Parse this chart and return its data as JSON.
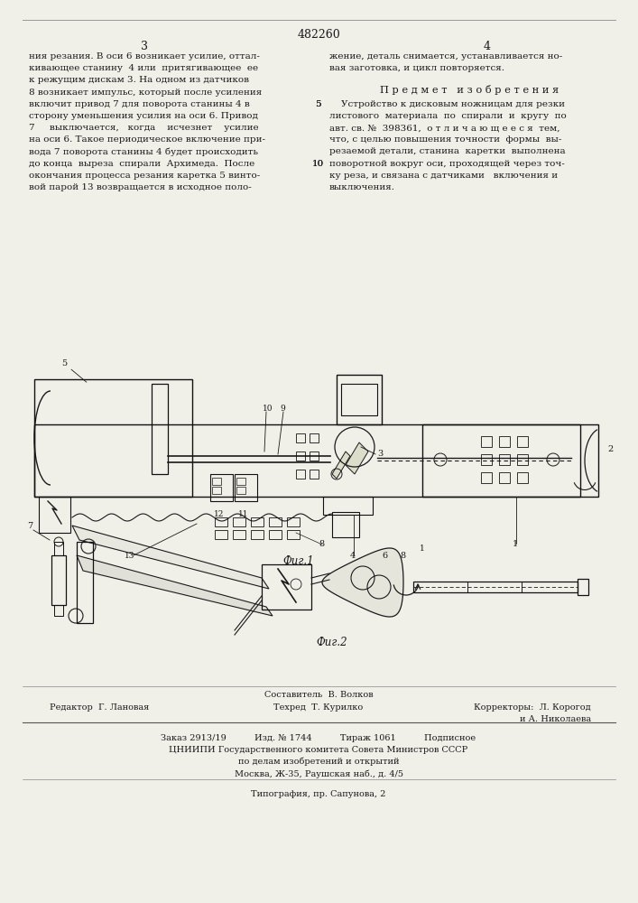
{
  "patent_number": "482260",
  "page_left": "3",
  "page_right": "4",
  "bg_color": "#f0efe8",
  "text_color": "#1a1a1a",
  "col1_text": "ния резания. В оси 6 возникает усилие, оттал-\nкивающее станину  4 или  притягивающее  ее\nк режущим дискам 3. На одном из датчиков\n8 возникает импульс, который после усиления\nвключит привод 7 для поворота станины 4 в\nсторону уменьшения усилия на оси 6. Привод\n7     выключается,   когда    исчезнет    усилие\nна оси 6. Такое периодическое включение при-\nвода 7 поворота станины 4 будет происходить\nдо конца  выреза  спирали  Архимеда.  После\nокончания процесса резания каретка 5 винто-\nвой парой 13 возвращается в исходное поло-",
  "col2_text_top": "жение, деталь снимается, устанавливается но-\nвая заготовка, и цикл повторяется.",
  "predmet_title": "П р е д м е т   и з о б р е т е н и я",
  "col2_text_body": "    Устройство к дисковым ножницам для резки\nлистового  материала  по  спирали  и  кругу  по\nавт. св. №  398361,  о т л и ч а ю щ е е с я  тем,\nчто, с целью повышения точности  формы  вы-\nрезаемой детали, станина  каретки  выполнена\nповоротной вокруг оси, проходящей через точ-\nку реза, и связана с датчиками   включения и\nвыключения.",
  "fig1_label": "Фиг.1",
  "fig2_label": "Фиг.2",
  "footer_row1": [
    "Редактор  Г. Лановая",
    "Составитель  В. Волков",
    "Корректоры:  Л. Корогод"
  ],
  "footer_row2": [
    "",
    "Техред  Т. Курилко",
    "и А. Николаева"
  ],
  "footer_order_line": "Заказ 2913/19          Изд. № 1744          Тираж 1061          Подписное",
  "footer_cniip": "ЦНИИПИ Государственного комитета Совета Министров СССР",
  "footer_cniip2": "по делам изобретений и открытий",
  "footer_address": "Москва, Ж-35, Раушская наб., д. 4/5",
  "footer_typo": "Типография, пр. Сапунова, 2"
}
